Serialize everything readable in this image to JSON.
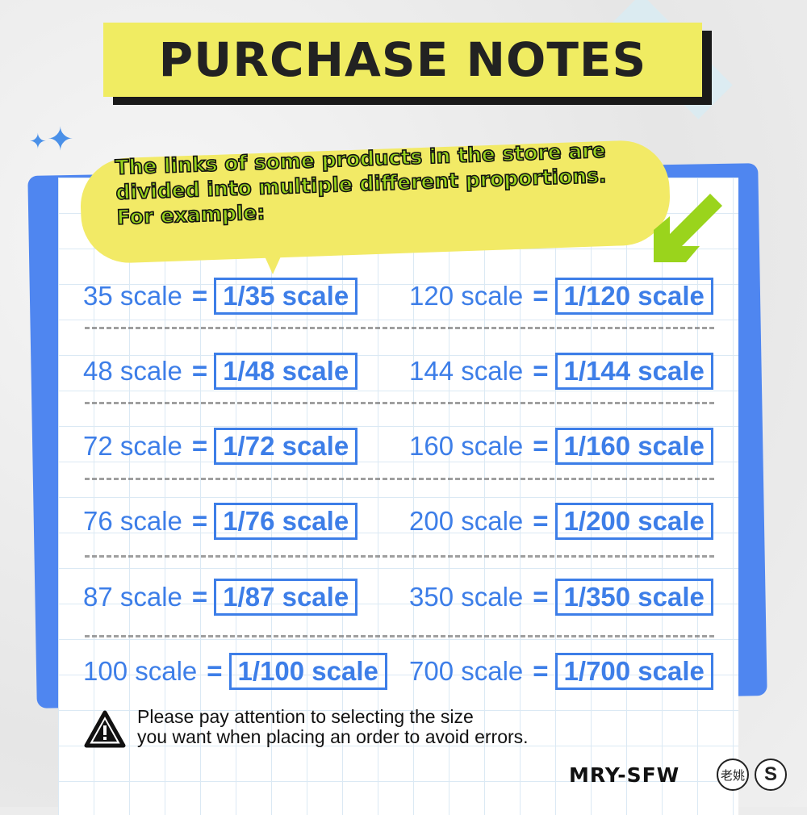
{
  "title": "PURCHASE NOTES",
  "intro": "The links of some products in the store are divided into multiple different proportions. For example:",
  "equals": "=",
  "rows": [
    {
      "left": {
        "label": "35 scale",
        "value": "1/35 scale"
      },
      "right": {
        "label": "120 scale",
        "value": "1/120 scale"
      }
    },
    {
      "left": {
        "label": "48 scale",
        "value": "1/48 scale"
      },
      "right": {
        "label": "144 scale",
        "value": "1/144 scale"
      }
    },
    {
      "left": {
        "label": "72 scale",
        "value": "1/72 scale"
      },
      "right": {
        "label": "160 scale",
        "value": "1/160 scale"
      }
    },
    {
      "left": {
        "label": "76 scale",
        "value": "1/76 scale"
      },
      "right": {
        "label": "200 scale",
        "value": "1/200 scale"
      }
    },
    {
      "left": {
        "label": "87 scale",
        "value": "1/87 scale"
      },
      "right": {
        "label": "350 scale",
        "value": "1/350 scale"
      }
    },
    {
      "left": {
        "label": "100 scale",
        "value": "1/100 scale"
      },
      "right": {
        "label": "700 scale",
        "value": "1/700 scale"
      }
    }
  ],
  "warning": {
    "icon": "warning-triangle-icon",
    "line1": "Please pay attention to selecting the size",
    "line2": "you want when placing an order to avoid errors."
  },
  "brand": {
    "name": "MRY-SFW",
    "seal1": "老姚",
    "seal2": "S"
  },
  "colors": {
    "accent_blue": "#3d7ee8",
    "yellow": "#f0ec62",
    "green": "#9ad41c"
  }
}
